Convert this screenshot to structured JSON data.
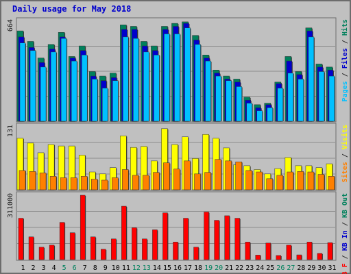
{
  "title": "Daily usage for May 2018",
  "chart_data": {
    "type": "bar",
    "categories": [
      "1",
      "2",
      "3",
      "4",
      "5",
      "6",
      "7",
      "8",
      "9",
      "10",
      "11",
      "12",
      "13",
      "14",
      "15",
      "16",
      "17",
      "18",
      "19",
      "20",
      "21",
      "22",
      "23",
      "24",
      "25",
      "26",
      "27",
      "28",
      "29",
      "30",
      "31"
    ],
    "weekend_categories": [
      "5",
      "6",
      "12",
      "13",
      "19",
      "20",
      "26",
      "27"
    ],
    "panels": [
      {
        "name": "top",
        "ymax_label": "664",
        "ymax": 664,
        "legend": [
          {
            "text": "Pages",
            "color": "#00c0ff"
          },
          {
            "text": " / ",
            "color": "#303030"
          },
          {
            "text": "Files",
            "color": "#0000cc"
          },
          {
            "text": " / ",
            "color": "#303030"
          },
          {
            "text": "Hits",
            "color": "#00805c"
          }
        ],
        "series": [
          {
            "name": "Hits",
            "color": "#00805c",
            "values": [
              600,
              530,
              420,
              510,
              590,
              430,
              500,
              330,
              300,
              320,
              640,
              630,
              530,
              500,
              630,
              650,
              660,
              570,
              440,
              340,
              300,
              280,
              160,
              110,
              120,
              260,
              430,
              330,
              620,
              380,
              360
            ]
          },
          {
            "name": "Files",
            "color": "#0000cc",
            "values": [
              560,
              490,
              390,
              480,
              560,
              420,
              470,
              300,
              270,
              290,
              610,
              610,
              500,
              470,
              610,
              630,
              650,
              540,
              420,
              320,
              280,
              260,
              140,
              90,
              110,
              250,
              400,
              310,
              600,
              360,
              340
            ]
          },
          {
            "name": "Pages",
            "color": "#00c0ff",
            "values": [
              520,
              470,
              360,
              460,
              550,
              400,
              440,
              280,
              220,
              270,
              560,
              550,
              460,
              440,
              580,
              580,
              620,
              510,
              400,
              300,
              270,
              230,
              120,
              70,
              90,
              220,
              320,
              280,
              560,
              330,
              300
            ]
          }
        ]
      },
      {
        "name": "middle",
        "ymax_label": "131",
        "ymax": 131,
        "legend": [
          {
            "text": "Sites",
            "color": "#ff8000"
          },
          {
            "text": " / ",
            "color": "#303030"
          },
          {
            "text": "Visits",
            "color": "#ffff00"
          }
        ],
        "series": [
          {
            "name": "Visits",
            "color": "#ffff00",
            "values": [
              107,
              97,
              77,
              94,
              91,
              91,
              72,
              37,
              33,
              46,
              112,
              88,
              90,
              60,
              127,
              94,
              110,
              65,
              115,
              107,
              87,
              52,
              50,
              42,
              33,
              44,
              67,
              50,
              50,
              46,
              54
            ]
          },
          {
            "name": "Sites",
            "color": "#ff8000",
            "values": [
              40,
              38,
              35,
              28,
              25,
              25,
              28,
              22,
              20,
              25,
              42,
              30,
              30,
              36,
              56,
              43,
              60,
              33,
              36,
              63,
              60,
              58,
              40,
              37,
              23,
              30,
              37,
              38,
              37,
              32,
              28
            ]
          }
        ]
      },
      {
        "name": "bottom",
        "ymax_label": "311000",
        "ymax": 311000,
        "legend": [
          {
            "text": "KB F",
            "color": "#ff0000"
          },
          {
            "text": " / ",
            "color": "#303030"
          },
          {
            "text": "KB In",
            "color": "#0000cc"
          },
          {
            "text": " / ",
            "color": "#303030"
          },
          {
            "text": "KB Out",
            "color": "#00805c"
          }
        ],
        "series": [
          {
            "name": "KB F",
            "color": "#ff0000",
            "values": [
              200000,
              110000,
              60000,
              70000,
              180000,
              130000,
              311000,
              110000,
              50000,
              100000,
              258000,
              154000,
              100000,
              144000,
              226000,
              85000,
              200000,
              60000,
              230000,
              190000,
              212000,
              200000,
              85000,
              22000,
              80000,
              20000,
              70000,
              23000,
              85000,
              30000,
              82000
            ]
          }
        ]
      }
    ]
  }
}
